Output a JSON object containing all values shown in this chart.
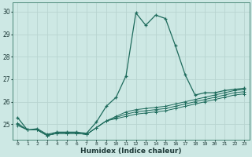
{
  "xlabel": "Humidex (Indice chaleur)",
  "background_color": "#cde8e4",
  "grid_color": "#b8d4d0",
  "line_color": "#1e6b5c",
  "x_ticks": [
    0,
    1,
    2,
    3,
    4,
    5,
    6,
    7,
    8,
    9,
    10,
    11,
    12,
    13,
    14,
    15,
    16,
    17,
    18,
    19,
    20,
    21,
    22,
    23
  ],
  "ylim": [
    24.3,
    30.4
  ],
  "xlim": [
    -0.5,
    23.5
  ],
  "yticks": [
    25,
    26,
    27,
    28,
    29,
    30
  ],
  "series": {
    "line1": [
      25.3,
      24.75,
      24.8,
      24.55,
      24.65,
      24.65,
      24.65,
      24.6,
      25.1,
      25.8,
      26.2,
      27.15,
      29.95,
      29.4,
      29.85,
      29.7,
      28.5,
      27.2,
      26.3,
      26.4,
      26.4,
      26.5,
      26.55,
      26.6
    ],
    "line2": [
      25.05,
      24.75,
      24.75,
      24.5,
      24.6,
      24.6,
      24.6,
      24.55,
      24.85,
      25.15,
      25.35,
      25.55,
      25.65,
      25.7,
      25.75,
      25.8,
      25.9,
      26.0,
      26.1,
      26.2,
      26.3,
      26.4,
      26.5,
      26.55
    ],
    "line3": [
      25.0,
      24.75,
      24.75,
      24.5,
      24.6,
      24.6,
      24.6,
      24.55,
      24.85,
      25.15,
      25.3,
      25.45,
      25.55,
      25.6,
      25.65,
      25.7,
      25.8,
      25.9,
      26.0,
      26.1,
      26.2,
      26.3,
      26.4,
      26.45
    ],
    "line4": [
      24.95,
      24.75,
      24.75,
      24.5,
      24.6,
      24.6,
      24.6,
      24.55,
      24.85,
      25.15,
      25.25,
      25.35,
      25.45,
      25.5,
      25.55,
      25.6,
      25.7,
      25.8,
      25.9,
      26.0,
      26.1,
      26.2,
      26.3,
      26.35
    ]
  }
}
